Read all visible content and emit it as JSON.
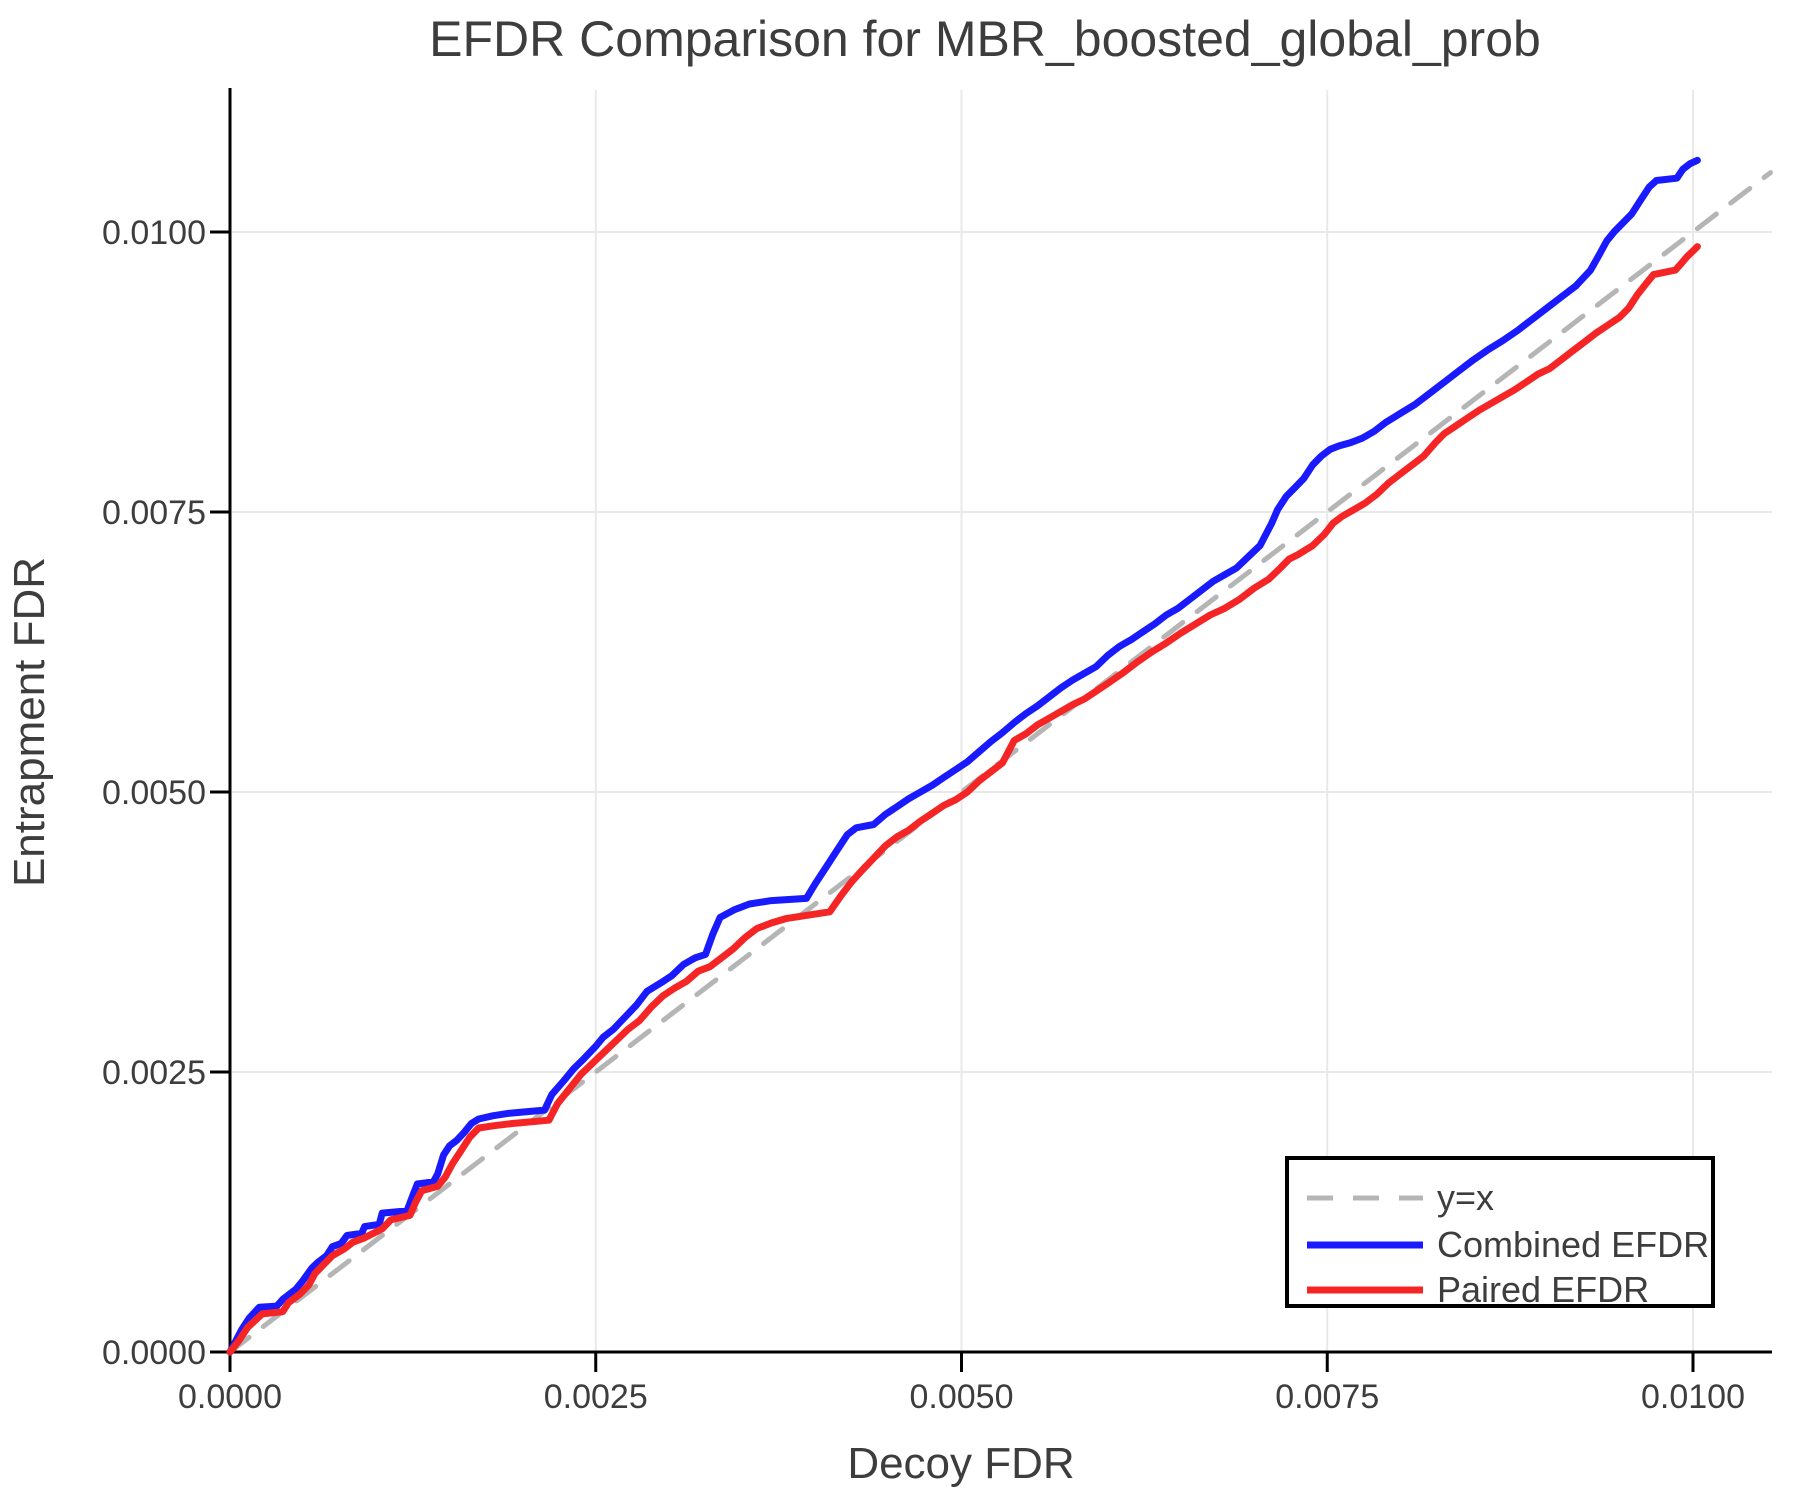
{
  "title": "EFDR Comparison for MBR_boosted_global_prob",
  "colors": {
    "combined": "#1a1aff",
    "paired": "#f52525",
    "reference": "#b5b5b5",
    "grid": "#e9e9e9",
    "spine": "#000000",
    "text": "#3d3d3d",
    "legend_border": "#000000",
    "legend_bg": "#ffffff"
  },
  "chart_data": {
    "type": "line",
    "title": "EFDR Comparison for MBR_boosted_global_prob",
    "xlabel": "Decoy FDR",
    "ylabel": "Entrapment FDR",
    "xlim": [
      0.0,
      0.01053
    ],
    "ylim": [
      0.0,
      0.01127
    ],
    "grid": true,
    "x_ticks": {
      "values": [
        0.0,
        0.0025,
        0.005,
        0.0075,
        0.01
      ],
      "labels": [
        "0.0000",
        "0.0025",
        "0.0050",
        "0.0075",
        "0.0100"
      ]
    },
    "y_ticks": {
      "values": [
        0.0,
        0.0025,
        0.005,
        0.0075,
        0.01
      ],
      "labels": [
        "0.0000",
        "0.0025",
        "0.0050",
        "0.0075",
        "0.0100"
      ]
    },
    "legend": {
      "position": "bottom-right",
      "entries": [
        {
          "label": "y=x",
          "color": "#b5b5b5",
          "dashed": true
        },
        {
          "label": "Combined EFDR",
          "color": "#1a1aff",
          "dashed": false
        },
        {
          "label": "Paired EFDR",
          "color": "#f52525",
          "dashed": false
        }
      ]
    },
    "series": [
      {
        "name": "y=x",
        "role": "reference",
        "color": "#b5b5b5",
        "dashed": true,
        "points": [
          [
            0.0,
            0.0
          ],
          [
            0.01053,
            0.01053
          ]
        ]
      },
      {
        "name": "Combined EFDR",
        "role": "data",
        "color": "#1a1aff",
        "dashed": false,
        "points": [
          [
            0.0,
            0.0
          ],
          [
            4e-05,
            0.0001
          ],
          [
            8e-05,
            0.0002
          ],
          [
            0.00013,
            0.0003
          ],
          [
            0.0002,
            0.0004
          ],
          [
            0.00032,
            0.00041
          ],
          [
            0.00036,
            0.00047
          ],
          [
            0.0004,
            0.00051
          ],
          [
            0.00045,
            0.00056
          ],
          [
            0.0005,
            0.00064
          ],
          [
            0.00056,
            0.00075
          ],
          [
            0.0006,
            0.0008
          ],
          [
            0.00066,
            0.00086
          ],
          [
            0.0007,
            0.00094
          ],
          [
            0.00076,
            0.00097
          ],
          [
            0.0008,
            0.00104
          ],
          [
            0.0009,
            0.00106
          ],
          [
            0.00092,
            0.00112
          ],
          [
            0.00102,
            0.00114
          ],
          [
            0.00104,
            0.00124
          ],
          [
            0.00121,
            0.00126
          ],
          [
            0.00125,
            0.0014
          ],
          [
            0.00128,
            0.0015
          ],
          [
            0.00139,
            0.00152
          ],
          [
            0.00142,
            0.00159
          ],
          [
            0.00146,
            0.00176
          ],
          [
            0.0015,
            0.00184
          ],
          [
            0.00155,
            0.00189
          ],
          [
            0.0016,
            0.00196
          ],
          [
            0.00165,
            0.00204
          ],
          [
            0.0017,
            0.00208
          ],
          [
            0.0018,
            0.00211
          ],
          [
            0.0019,
            0.00213
          ],
          [
            0.00215,
            0.00216
          ],
          [
            0.0022,
            0.0023
          ],
          [
            0.00228,
            0.00242
          ],
          [
            0.00235,
            0.00253
          ],
          [
            0.00242,
            0.00262
          ],
          [
            0.0025,
            0.00273
          ],
          [
            0.00255,
            0.00281
          ],
          [
            0.00262,
            0.00288
          ],
          [
            0.0027,
            0.00299
          ],
          [
            0.00278,
            0.0031
          ],
          [
            0.00285,
            0.00322
          ],
          [
            0.00295,
            0.0033
          ],
          [
            0.00302,
            0.00336
          ],
          [
            0.0031,
            0.00346
          ],
          [
            0.00318,
            0.00352
          ],
          [
            0.00325,
            0.00355
          ],
          [
            0.0033,
            0.00373
          ],
          [
            0.00335,
            0.00388
          ],
          [
            0.00345,
            0.00395
          ],
          [
            0.00355,
            0.004
          ],
          [
            0.0037,
            0.00403
          ],
          [
            0.00394,
            0.00405
          ],
          [
            0.004,
            0.00418
          ],
          [
            0.00408,
            0.00434
          ],
          [
            0.00415,
            0.00448
          ],
          [
            0.00422,
            0.00462
          ],
          [
            0.00428,
            0.00468
          ],
          [
            0.0044,
            0.00471
          ],
          [
            0.00448,
            0.0048
          ],
          [
            0.00456,
            0.00487
          ],
          [
            0.00464,
            0.00494
          ],
          [
            0.00472,
            0.005
          ],
          [
            0.0048,
            0.00506
          ],
          [
            0.00488,
            0.00513
          ],
          [
            0.00496,
            0.0052
          ],
          [
            0.00504,
            0.00527
          ],
          [
            0.00512,
            0.00536
          ],
          [
            0.0052,
            0.00545
          ],
          [
            0.00528,
            0.00553
          ],
          [
            0.00536,
            0.00562
          ],
          [
            0.00544,
            0.0057
          ],
          [
            0.00552,
            0.00577
          ],
          [
            0.0056,
            0.00585
          ],
          [
            0.00568,
            0.00593
          ],
          [
            0.00576,
            0.006
          ],
          [
            0.00584,
            0.00606
          ],
          [
            0.00592,
            0.00612
          ],
          [
            0.006,
            0.00622
          ],
          [
            0.00608,
            0.0063
          ],
          [
            0.00616,
            0.00636
          ],
          [
            0.00624,
            0.00643
          ],
          [
            0.00632,
            0.0065
          ],
          [
            0.0064,
            0.00658
          ],
          [
            0.00648,
            0.00664
          ],
          [
            0.00656,
            0.00672
          ],
          [
            0.00664,
            0.0068
          ],
          [
            0.00672,
            0.00688
          ],
          [
            0.0068,
            0.00694
          ],
          [
            0.00688,
            0.007
          ],
          [
            0.00696,
            0.0071
          ],
          [
            0.00704,
            0.0072
          ],
          [
            0.00712,
            0.0074
          ],
          [
            0.00716,
            0.00752
          ],
          [
            0.00722,
            0.00764
          ],
          [
            0.00728,
            0.00772
          ],
          [
            0.00734,
            0.0078
          ],
          [
            0.0074,
            0.00792
          ],
          [
            0.00746,
            0.008
          ],
          [
            0.00752,
            0.00806
          ],
          [
            0.00758,
            0.00809
          ],
          [
            0.00766,
            0.00812
          ],
          [
            0.00774,
            0.00816
          ],
          [
            0.00782,
            0.00822
          ],
          [
            0.0079,
            0.0083
          ],
          [
            0.008,
            0.00838
          ],
          [
            0.0081,
            0.00846
          ],
          [
            0.0082,
            0.00856
          ],
          [
            0.0083,
            0.00866
          ],
          [
            0.0084,
            0.00876
          ],
          [
            0.0085,
            0.00886
          ],
          [
            0.0086,
            0.00895
          ],
          [
            0.0087,
            0.00903
          ],
          [
            0.0088,
            0.00912
          ],
          [
            0.0089,
            0.00922
          ],
          [
            0.009,
            0.00932
          ],
          [
            0.0091,
            0.00942
          ],
          [
            0.0092,
            0.00952
          ],
          [
            0.0093,
            0.00966
          ],
          [
            0.00936,
            0.0098
          ],
          [
            0.00941,
            0.00992
          ],
          [
            0.00946,
            0.01
          ],
          [
            0.00952,
            0.01008
          ],
          [
            0.00958,
            0.01016
          ],
          [
            0.00964,
            0.01028
          ],
          [
            0.0097,
            0.0104
          ],
          [
            0.00975,
            0.01046
          ],
          [
            0.00989,
            0.01048
          ],
          [
            0.00993,
            0.01056
          ],
          [
            0.00998,
            0.01061
          ],
          [
            0.01003,
            0.01064
          ]
        ]
      },
      {
        "name": "Paired EFDR",
        "role": "data",
        "color": "#f52525",
        "dashed": false,
        "points": [
          [
            0.0,
            0.0
          ],
          [
            6e-05,
            0.0001
          ],
          [
            0.00012,
            0.00022
          ],
          [
            0.00022,
            0.00034
          ],
          [
            0.00036,
            0.00036
          ],
          [
            0.0004,
            0.00044
          ],
          [
            0.00048,
            0.00052
          ],
          [
            0.00054,
            0.0006
          ],
          [
            0.00058,
            0.0007
          ],
          [
            0.00064,
            0.00078
          ],
          [
            0.0007,
            0.00086
          ],
          [
            0.00078,
            0.00092
          ],
          [
            0.00084,
            0.00098
          ],
          [
            0.00092,
            0.00102
          ],
          [
            0.00104,
            0.0011
          ],
          [
            0.0011,
            0.00118
          ],
          [
            0.00123,
            0.00122
          ],
          [
            0.00127,
            0.00134
          ],
          [
            0.00131,
            0.00144
          ],
          [
            0.00142,
            0.00148
          ],
          [
            0.00147,
            0.00156
          ],
          [
            0.00152,
            0.00168
          ],
          [
            0.00158,
            0.0018
          ],
          [
            0.00164,
            0.00192
          ],
          [
            0.0017,
            0.002
          ],
          [
            0.0018,
            0.00202
          ],
          [
            0.00193,
            0.00204
          ],
          [
            0.00218,
            0.00207
          ],
          [
            0.00224,
            0.00222
          ],
          [
            0.00232,
            0.00235
          ],
          [
            0.0024,
            0.00248
          ],
          [
            0.00248,
            0.00258
          ],
          [
            0.00256,
            0.00268
          ],
          [
            0.00264,
            0.00278
          ],
          [
            0.00272,
            0.00288
          ],
          [
            0.0028,
            0.00296
          ],
          [
            0.00288,
            0.00308
          ],
          [
            0.00296,
            0.00318
          ],
          [
            0.00304,
            0.00325
          ],
          [
            0.00312,
            0.00331
          ],
          [
            0.0032,
            0.0034
          ],
          [
            0.00328,
            0.00344
          ],
          [
            0.00336,
            0.00352
          ],
          [
            0.00344,
            0.0036
          ],
          [
            0.00352,
            0.0037
          ],
          [
            0.0036,
            0.00378
          ],
          [
            0.0037,
            0.00383
          ],
          [
            0.0038,
            0.00387
          ],
          [
            0.00395,
            0.0039
          ],
          [
            0.0041,
            0.00393
          ],
          [
            0.00418,
            0.00408
          ],
          [
            0.00425,
            0.0042
          ],
          [
            0.00432,
            0.0043
          ],
          [
            0.0044,
            0.00441
          ],
          [
            0.00448,
            0.00452
          ],
          [
            0.00456,
            0.0046
          ],
          [
            0.00464,
            0.00466
          ],
          [
            0.00472,
            0.00474
          ],
          [
            0.0048,
            0.00481
          ],
          [
            0.00488,
            0.00488
          ],
          [
            0.00496,
            0.00493
          ],
          [
            0.00504,
            0.005
          ],
          [
            0.00512,
            0.0051
          ],
          [
            0.0052,
            0.00518
          ],
          [
            0.00528,
            0.00526
          ],
          [
            0.00536,
            0.00546
          ],
          [
            0.00544,
            0.00552
          ],
          [
            0.00552,
            0.0056
          ],
          [
            0.0056,
            0.00566
          ],
          [
            0.00568,
            0.00572
          ],
          [
            0.00576,
            0.00578
          ],
          [
            0.00584,
            0.00583
          ],
          [
            0.00592,
            0.0059
          ],
          [
            0.006,
            0.00597
          ],
          [
            0.0061,
            0.00606
          ],
          [
            0.0062,
            0.00616
          ],
          [
            0.0063,
            0.00625
          ],
          [
            0.0064,
            0.00633
          ],
          [
            0.0065,
            0.00642
          ],
          [
            0.0066,
            0.0065
          ],
          [
            0.0067,
            0.00658
          ],
          [
            0.0068,
            0.00664
          ],
          [
            0.0069,
            0.00672
          ],
          [
            0.007,
            0.00682
          ],
          [
            0.0071,
            0.0069
          ],
          [
            0.00718,
            0.007
          ],
          [
            0.00724,
            0.00708
          ],
          [
            0.0073,
            0.00712
          ],
          [
            0.0074,
            0.0072
          ],
          [
            0.00748,
            0.0073
          ],
          [
            0.00754,
            0.0074
          ],
          [
            0.0076,
            0.00746
          ],
          [
            0.00768,
            0.00752
          ],
          [
            0.00776,
            0.00758
          ],
          [
            0.00784,
            0.00766
          ],
          [
            0.00792,
            0.00776
          ],
          [
            0.008,
            0.00784
          ],
          [
            0.00808,
            0.00792
          ],
          [
            0.00816,
            0.008
          ],
          [
            0.00824,
            0.00812
          ],
          [
            0.0083,
            0.0082
          ],
          [
            0.00838,
            0.00827
          ],
          [
            0.00846,
            0.00834
          ],
          [
            0.00854,
            0.00841
          ],
          [
            0.00862,
            0.00847
          ],
          [
            0.0087,
            0.00853
          ],
          [
            0.00878,
            0.00859
          ],
          [
            0.00886,
            0.00866
          ],
          [
            0.00894,
            0.00873
          ],
          [
            0.00902,
            0.00878
          ],
          [
            0.0091,
            0.00886
          ],
          [
            0.00918,
            0.00894
          ],
          [
            0.00926,
            0.00902
          ],
          [
            0.00934,
            0.0091
          ],
          [
            0.00942,
            0.00917
          ],
          [
            0.0095,
            0.00924
          ],
          [
            0.00956,
            0.00932
          ],
          [
            0.00962,
            0.00944
          ],
          [
            0.00968,
            0.00954
          ],
          [
            0.00973,
            0.00962
          ],
          [
            0.00988,
            0.00966
          ],
          [
            0.00992,
            0.00972
          ],
          [
            0.00996,
            0.00978
          ],
          [
            0.01,
            0.00983
          ],
          [
            0.01003,
            0.00987
          ]
        ]
      }
    ]
  }
}
